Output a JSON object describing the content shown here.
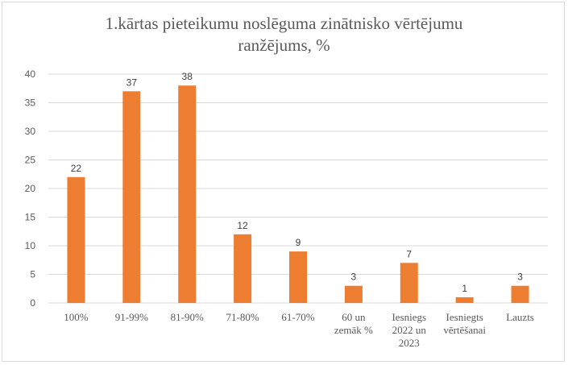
{
  "chart_data": {
    "type": "bar",
    "title_lines": [
      "1.kārtas pieteikumu noslēguma zinātnisko vērtējumu",
      "ranžējums, %"
    ],
    "categories": [
      [
        "100%"
      ],
      [
        "91-99%"
      ],
      [
        "81-90%"
      ],
      [
        "71-80%"
      ],
      [
        "61-70%"
      ],
      [
        "60 un",
        "zemāk %"
      ],
      [
        "Iesniegs",
        "2022 un",
        "2023"
      ],
      [
        "Iesniegts",
        "vērtēšanai"
      ],
      [
        "Lauzts"
      ]
    ],
    "values": [
      22,
      37,
      38,
      12,
      9,
      3,
      7,
      1,
      3
    ],
    "ylim": [
      0,
      40
    ],
    "yticks": [
      0,
      5,
      10,
      15,
      20,
      25,
      30,
      35,
      40
    ],
    "bar_color": "#ED7D31",
    "grid_color": "#d9d9d9",
    "grid": true,
    "legend": "none"
  }
}
